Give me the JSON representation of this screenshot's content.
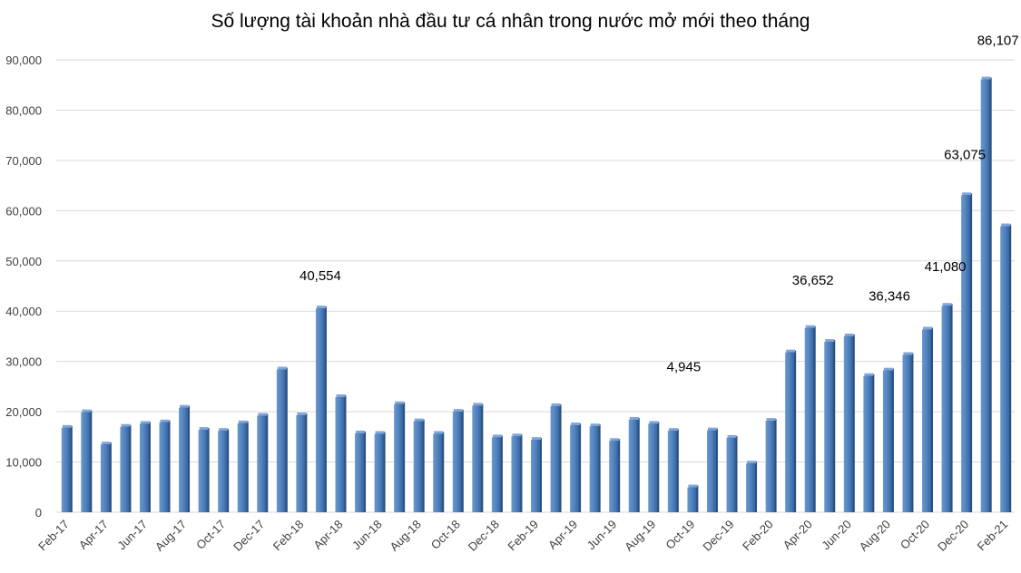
{
  "chart_data": {
    "type": "bar",
    "title": "Số lượng tài khoản nhà đầu tư cá nhân trong nước mở mới theo tháng",
    "xlabel": "",
    "ylabel": "",
    "ylim": [
      0,
      90000
    ],
    "yticks": [
      0,
      10000,
      20000,
      30000,
      40000,
      50000,
      60000,
      70000,
      80000,
      90000
    ],
    "ytick_labels": [
      "0",
      "10,000",
      "20,000",
      "30,000",
      "40,000",
      "50,000",
      "60,000",
      "70,000",
      "80,000",
      "90,000"
    ],
    "grid": true,
    "bar_color": "#4f81bd",
    "categories": [
      "Feb-17",
      "Mar-17",
      "Apr-17",
      "May-17",
      "Jun-17",
      "Jul-17",
      "Aug-17",
      "Sep-17",
      "Oct-17",
      "Nov-17",
      "Dec-17",
      "Jan-18",
      "Feb-18",
      "Mar-18",
      "Apr-18",
      "May-18",
      "Jun-18",
      "Jul-18",
      "Aug-18",
      "Sep-18",
      "Oct-18",
      "Nov-18",
      "Dec-18",
      "Jan-19",
      "Feb-19",
      "Mar-19",
      "Apr-19",
      "May-19",
      "Jun-19",
      "Jul-19",
      "Aug-19",
      "Sep-19",
      "Oct-19",
      "Nov-19",
      "Dec-19",
      "Jan-20",
      "Feb-20",
      "Mar-20",
      "Apr-20",
      "May-20",
      "Jun-20",
      "Jul-20",
      "Aug-20",
      "Sep-20",
      "Oct-20",
      "Nov-20",
      "Dec-20",
      "Jan-21",
      "Feb-21"
    ],
    "x_tick_labels": [
      "Feb-17",
      "",
      "Apr-17",
      "",
      "Jun-17",
      "",
      "Aug-17",
      "",
      "Oct-17",
      "",
      "Dec-17",
      "",
      "Feb-18",
      "",
      "Apr-18",
      "",
      "Jun-18",
      "",
      "Aug-18",
      "",
      "Oct-18",
      "",
      "Dec-18",
      "",
      "Feb-19",
      "",
      "Apr-19",
      "",
      "Jun-19",
      "",
      "Aug-19",
      "",
      "Oct-19",
      "",
      "Dec-19",
      "",
      "Feb-20",
      "",
      "Apr-20",
      "",
      "Jun-20",
      "",
      "Aug-20",
      "",
      "Oct-20",
      "",
      "Dec-20",
      "",
      "Feb-21"
    ],
    "values": [
      16800,
      19900,
      13500,
      17000,
      17600,
      17900,
      20800,
      16400,
      16200,
      17700,
      19200,
      28400,
      19300,
      40554,
      22900,
      15700,
      15600,
      21500,
      18100,
      15600,
      20000,
      21200,
      14900,
      15100,
      14400,
      21100,
      17300,
      17100,
      14200,
      18400,
      17600,
      16200,
      4945,
      16300,
      14800,
      9700,
      18200,
      31800,
      36652,
      33900,
      35000,
      27100,
      28200,
      31300,
      36346,
      41080,
      63075,
      86107,
      56900
    ],
    "annotations": [
      {
        "text": "40,554",
        "index": 13
      },
      {
        "text": "4,945",
        "index": 32
      },
      {
        "text": "36,652",
        "index": 38
      },
      {
        "text": "36,346",
        "index": 44
      },
      {
        "text": "41,080",
        "index": 45
      },
      {
        "text": "63,075",
        "index": 46
      },
      {
        "text": "86,107",
        "index": 47
      }
    ]
  }
}
